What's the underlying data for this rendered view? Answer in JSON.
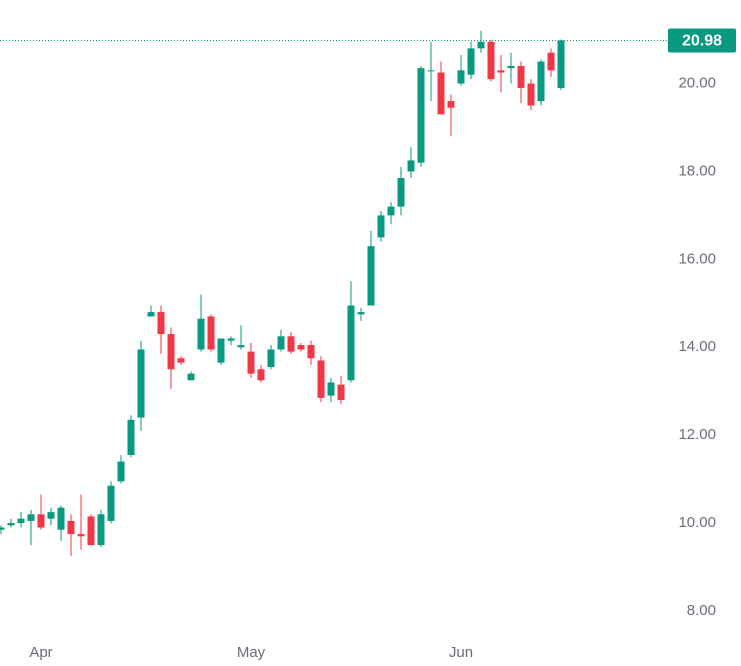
{
  "chart_data": {
    "type": "candlestick",
    "categories": [
      null,
      null,
      null,
      null,
      "Apr",
      null,
      null,
      null,
      null,
      null,
      null,
      null,
      null,
      null,
      null,
      null,
      null,
      null,
      null,
      null,
      null,
      null,
      null,
      null,
      null,
      "May",
      null,
      null,
      null,
      null,
      null,
      null,
      null,
      null,
      null,
      null,
      null,
      null,
      null,
      null,
      null,
      null,
      null,
      null,
      null,
      null,
      "Jun",
      null,
      null,
      null,
      null,
      null,
      null,
      null,
      null,
      null,
      null
    ],
    "open": [
      9.85,
      9.95,
      10.0,
      10.05,
      10.2,
      10.1,
      9.85,
      10.05,
      9.75,
      10.15,
      9.5,
      10.05,
      10.95,
      11.55,
      12.4,
      14.7,
      14.8,
      14.3,
      13.75,
      13.25,
      13.95,
      14.7,
      13.65,
      14.15,
      14.0,
      13.9,
      13.5,
      13.55,
      13.95,
      14.25,
      14.05,
      14.05,
      13.7,
      12.9,
      13.15,
      13.25,
      14.75,
      14.95,
      16.5,
      17.0,
      17.2,
      18.0,
      18.2,
      20.28,
      20.25,
      19.6,
      20.0,
      20.2,
      20.8,
      20.95,
      20.3,
      20.35,
      20.4,
      20.0,
      19.6,
      20.7,
      19.9
    ],
    "high": [
      9.95,
      10.1,
      10.25,
      10.3,
      10.65,
      10.35,
      10.4,
      10.2,
      10.65,
      10.2,
      10.3,
      10.95,
      11.55,
      12.45,
      14.15,
      14.95,
      14.95,
      14.45,
      13.8,
      13.45,
      15.2,
      14.75,
      14.2,
      14.25,
      14.5,
      14.1,
      13.6,
      14.05,
      14.4,
      14.35,
      14.1,
      14.15,
      13.8,
      13.3,
      13.35,
      15.5,
      14.9,
      16.65,
      17.1,
      17.3,
      18.1,
      18.55,
      20.4,
      20.95,
      20.5,
      19.75,
      20.65,
      20.95,
      21.2,
      21.0,
      20.65,
      20.7,
      20.5,
      20.1,
      20.55,
      20.8,
      21.0
    ],
    "low": [
      9.75,
      9.9,
      9.9,
      9.5,
      9.85,
      9.95,
      9.6,
      9.25,
      9.4,
      9.5,
      9.45,
      10.0,
      10.9,
      11.5,
      12.1,
      14.7,
      13.85,
      13.05,
      13.6,
      13.25,
      13.9,
      13.9,
      13.6,
      14.05,
      13.95,
      13.3,
      13.2,
      13.5,
      13.9,
      13.85,
      13.9,
      13.6,
      12.75,
      12.75,
      12.7,
      13.2,
      14.6,
      14.95,
      16.4,
      16.8,
      17.0,
      17.85,
      18.1,
      19.6,
      19.3,
      18.8,
      19.95,
      20.1,
      20.7,
      20.05,
      19.8,
      20.0,
      19.55,
      19.4,
      19.5,
      20.15,
      19.85
    ],
    "close": [
      9.9,
      10.0,
      10.1,
      10.2,
      9.9,
      10.25,
      10.35,
      9.75,
      9.7,
      9.5,
      10.2,
      10.85,
      11.4,
      12.35,
      13.95,
      14.8,
      14.3,
      13.5,
      13.65,
      13.4,
      14.65,
      13.95,
      14.2,
      14.2,
      14.05,
      13.4,
      13.25,
      13.95,
      14.25,
      13.9,
      13.95,
      13.75,
      12.85,
      13.2,
      12.8,
      14.95,
      14.8,
      16.3,
      17.0,
      17.2,
      17.85,
      18.25,
      20.35,
      20.3,
      19.3,
      19.45,
      20.3,
      20.8,
      20.95,
      20.1,
      20.25,
      20.4,
      19.9,
      19.5,
      20.5,
      20.3,
      20.98
    ],
    "up_color": "#089981",
    "down_color": "#f23645",
    "last_price": 20.98,
    "ylim": [
      7.5,
      21.9
    ],
    "yticks": [
      {
        "value": 8,
        "label": "8.00"
      },
      {
        "value": 10,
        "label": "10.00"
      },
      {
        "value": 12,
        "label": "12.00"
      },
      {
        "value": 14,
        "label": "14.00"
      },
      {
        "value": 16,
        "label": "16.00"
      },
      {
        "value": 18,
        "label": "18.00"
      },
      {
        "value": 20,
        "label": "20.00"
      }
    ]
  }
}
